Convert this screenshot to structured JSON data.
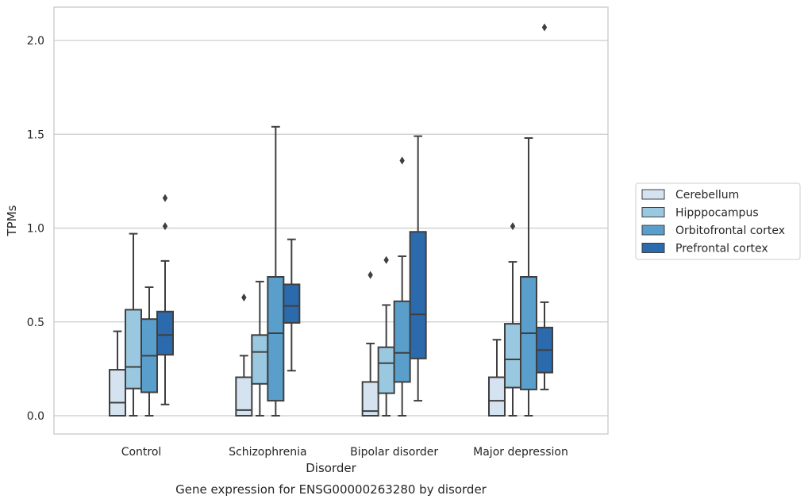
{
  "caption": "Gene expression for ENSG00000263280 by disorder",
  "chart_data": {
    "type": "box",
    "title": "",
    "xlabel": "Disorder",
    "ylabel": "TPMs",
    "ylim": [
      -0.1,
      2.18
    ],
    "yticks": [
      0.0,
      0.5,
      1.0,
      1.5,
      2.0
    ],
    "ytick_labels": [
      "0.0",
      "0.5",
      "1.0",
      "1.5",
      "2.0"
    ],
    "grid": "y",
    "legend_position": "right",
    "categories": [
      "Control",
      "Schizophrenia",
      "Bipolar disorder",
      "Major depression"
    ],
    "series": [
      {
        "name": "Cerebellum",
        "color": "#d5e3f1",
        "boxes": [
          {
            "whisker_low": 0.0,
            "q1": 0.0,
            "median": 0.07,
            "q3": 0.245,
            "whisker_high": 0.45,
            "outliers": []
          },
          {
            "whisker_low": 0.0,
            "q1": 0.0,
            "median": 0.03,
            "q3": 0.205,
            "whisker_high": 0.32,
            "outliers": [
              0.63
            ]
          },
          {
            "whisker_low": 0.0,
            "q1": 0.0,
            "median": 0.025,
            "q3": 0.18,
            "whisker_high": 0.385,
            "outliers": [
              0.75
            ]
          },
          {
            "whisker_low": 0.0,
            "q1": 0.0,
            "median": 0.08,
            "q3": 0.205,
            "whisker_high": 0.405,
            "outliers": []
          }
        ]
      },
      {
        "name": "Hipppocampus",
        "color": "#9ac8e0",
        "boxes": [
          {
            "whisker_low": 0.0,
            "q1": 0.145,
            "median": 0.26,
            "q3": 0.565,
            "whisker_high": 0.97,
            "outliers": []
          },
          {
            "whisker_low": 0.0,
            "q1": 0.17,
            "median": 0.34,
            "q3": 0.43,
            "whisker_high": 0.715,
            "outliers": []
          },
          {
            "whisker_low": 0.0,
            "q1": 0.12,
            "median": 0.28,
            "q3": 0.365,
            "whisker_high": 0.59,
            "outliers": [
              0.83
            ]
          },
          {
            "whisker_low": 0.0,
            "q1": 0.15,
            "median": 0.3,
            "q3": 0.49,
            "whisker_high": 0.82,
            "outliers": [
              1.01
            ]
          }
        ]
      },
      {
        "name": "Orbitofrontal cortex",
        "color": "#5a9ecb",
        "boxes": [
          {
            "whisker_low": 0.0,
            "q1": 0.125,
            "median": 0.32,
            "q3": 0.515,
            "whisker_high": 0.685,
            "outliers": []
          },
          {
            "whisker_low": 0.0,
            "q1": 0.08,
            "median": 0.44,
            "q3": 0.74,
            "whisker_high": 1.54,
            "outliers": []
          },
          {
            "whisker_low": 0.0,
            "q1": 0.18,
            "median": 0.335,
            "q3": 0.61,
            "whisker_high": 0.85,
            "outliers": [
              1.36
            ]
          },
          {
            "whisker_low": 0.0,
            "q1": 0.14,
            "median": 0.44,
            "q3": 0.74,
            "whisker_high": 1.48,
            "outliers": []
          }
        ]
      },
      {
        "name": "Prefrontal cortex",
        "color": "#2b6aad",
        "boxes": [
          {
            "whisker_low": 0.06,
            "q1": 0.325,
            "median": 0.43,
            "q3": 0.555,
            "whisker_high": 0.825,
            "outliers": [
              1.01,
              1.16
            ]
          },
          {
            "whisker_low": 0.24,
            "q1": 0.495,
            "median": 0.585,
            "q3": 0.7,
            "whisker_high": 0.94,
            "outliers": []
          },
          {
            "whisker_low": 0.08,
            "q1": 0.305,
            "median": 0.54,
            "q3": 0.98,
            "whisker_high": 1.49,
            "outliers": []
          },
          {
            "whisker_low": 0.14,
            "q1": 0.23,
            "median": 0.35,
            "q3": 0.47,
            "whisker_high": 0.605,
            "outliers": [
              2.07
            ]
          }
        ]
      }
    ]
  }
}
